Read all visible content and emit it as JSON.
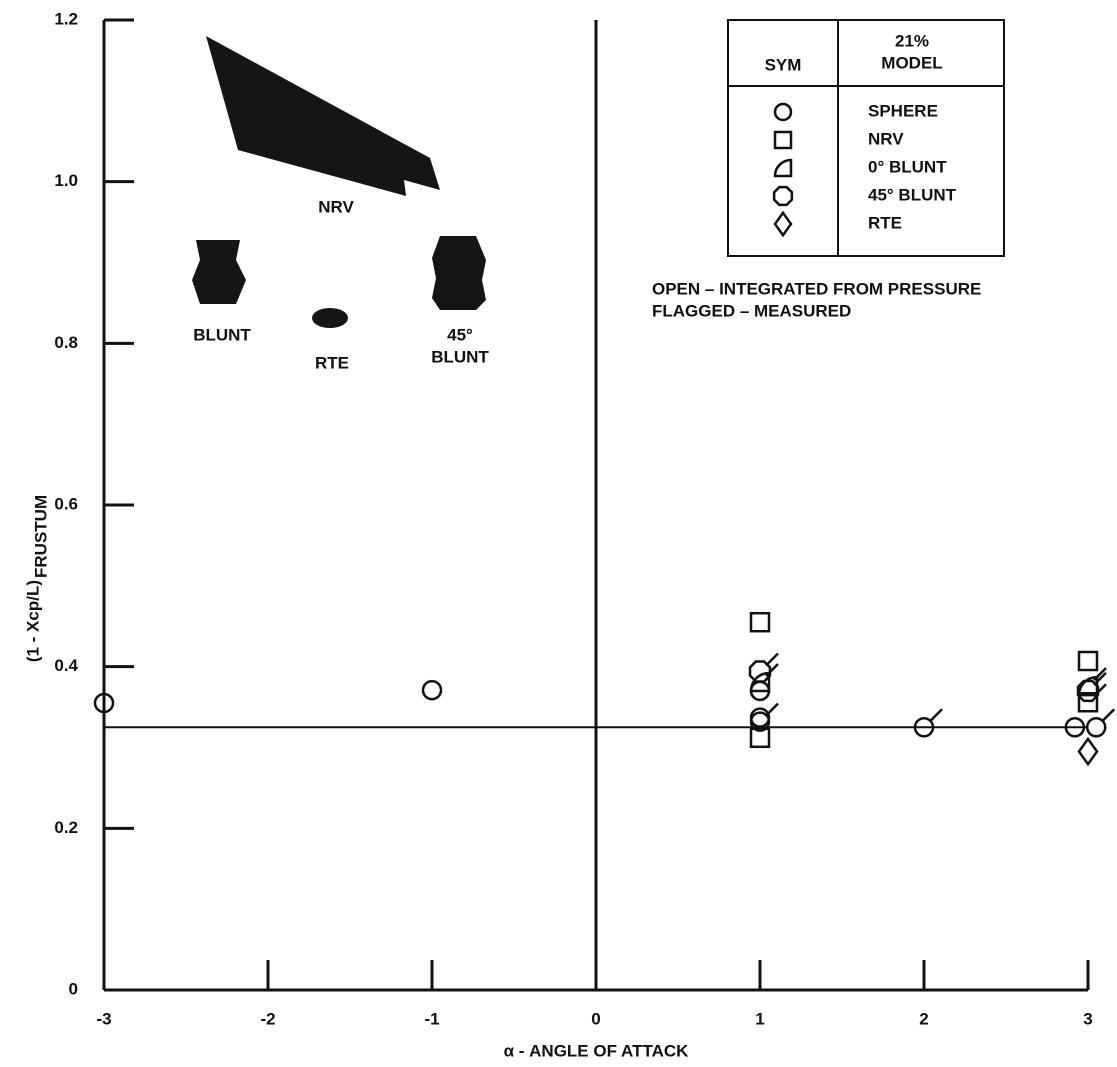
{
  "chart_data": {
    "type": "scatter",
    "x_label": "α - ANGLE OF ATTACK",
    "y_label": "(1 - Xcp/L)",
    "y_label_sub": "FRUSTUM",
    "xlim": [
      -3,
      3
    ],
    "ylim": [
      0,
      1.2
    ],
    "xticks": [
      -3,
      -2,
      -1,
      0,
      1,
      2,
      3
    ],
    "yticks": [
      0,
      0.2,
      0.4,
      0.6,
      0.8,
      {
        "value": 1,
        "label": "1.0"
      },
      1.2
    ],
    "reference_y": 0.325,
    "legend_header": [
      "SYM",
      "21%",
      "MODEL"
    ],
    "notes": [
      "OPEN – INTEGRATED FROM PRESSURE",
      "FLAGGED – MEASURED"
    ],
    "model_labels": [
      "NRV",
      "BLUNT",
      "RTE",
      "45°",
      "BLUNT"
    ],
    "series": [
      {
        "name": "SPHERE",
        "marker": "circle",
        "color": "#111",
        "x": [
          -3,
          -1,
          1,
          1,
          1,
          2,
          2.92,
          3.05
        ],
        "values": [
          0.355,
          0.371,
          0.37,
          0.337,
          0.332,
          0.325,
          0.325,
          0.325
        ],
        "flagged": [
          false,
          false,
          false,
          false,
          true,
          true,
          false,
          true
        ]
      },
      {
        "name": "NRV",
        "marker": "square",
        "color": "#111",
        "x": [
          1,
          1,
          3,
          3
        ],
        "values": [
          0.455,
          0.312,
          0.407,
          0.356
        ],
        "flagged": [
          false,
          false,
          false,
          true
        ]
      },
      {
        "name": "0° BLUNT",
        "marker": "half",
        "color": "#111",
        "x": [
          1,
          3
        ],
        "values": [
          0.381,
          0.376
        ],
        "flagged": [
          true,
          true
        ]
      },
      {
        "name": "45° BLUNT",
        "marker": "octagon",
        "color": "#111",
        "x": [
          1,
          3
        ],
        "values": [
          0.394,
          0.37
        ],
        "flagged": [
          true,
          true
        ]
      },
      {
        "name": "RTE",
        "marker": "diamond",
        "color": "#111",
        "x": [
          3
        ],
        "values": [
          0.295
        ],
        "flagged": [
          false
        ]
      }
    ]
  }
}
